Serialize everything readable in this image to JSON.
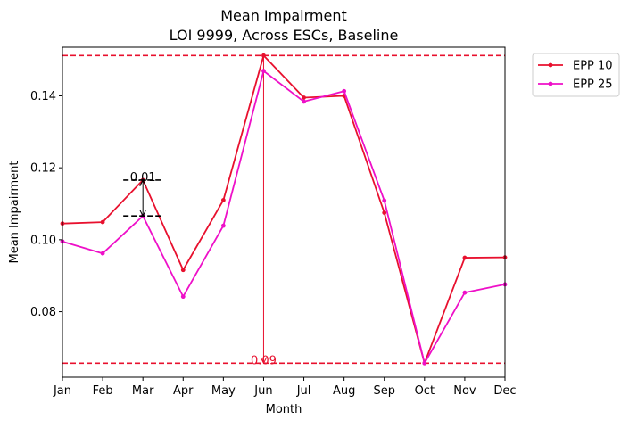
{
  "chart_data": {
    "type": "line",
    "title": "Mean Impairment",
    "subtitle": "LOI 9999, Across ESCs, Baseline",
    "xlabel": "Month",
    "ylabel": "Mean Impairment",
    "categories": [
      "Jan",
      "Feb",
      "Mar",
      "Apr",
      "May",
      "Jun",
      "Jul",
      "Aug",
      "Sep",
      "Oct",
      "Nov",
      "Dec"
    ],
    "y_ticks": [
      "0.08",
      "0.10",
      "0.12",
      "0.14"
    ],
    "ylim": [
      0.0618,
      0.1535
    ],
    "grid": false,
    "legend_position": "outside-top-right",
    "series": [
      {
        "name": "EPP 10",
        "color": "#e8102e",
        "values": [
          0.1045,
          0.1049,
          0.1166,
          0.0916,
          0.111,
          0.1512,
          0.1395,
          0.14,
          0.1075,
          0.0657,
          0.095,
          0.0951
        ]
      },
      {
        "name": "EPP 25",
        "color": "#ee10c8",
        "values": [
          0.0995,
          0.0962,
          0.1066,
          0.0842,
          0.1039,
          0.1469,
          0.1384,
          0.1413,
          0.1109,
          0.0657,
          0.0853,
          0.0876
        ]
      }
    ],
    "reference_lines": {
      "max": 0.1512,
      "min": 0.0657,
      "color": "#e8102e"
    },
    "annotations": {
      "difference": {
        "label": "0.01",
        "month_index": 2,
        "y_top": 0.1166,
        "y_bottom": 0.1066,
        "color": "#000000"
      },
      "range": {
        "label": "0.09",
        "month_index": 5,
        "y_top": 0.1512,
        "y_bottom": 0.0657,
        "color": "#e8102e"
      }
    }
  }
}
